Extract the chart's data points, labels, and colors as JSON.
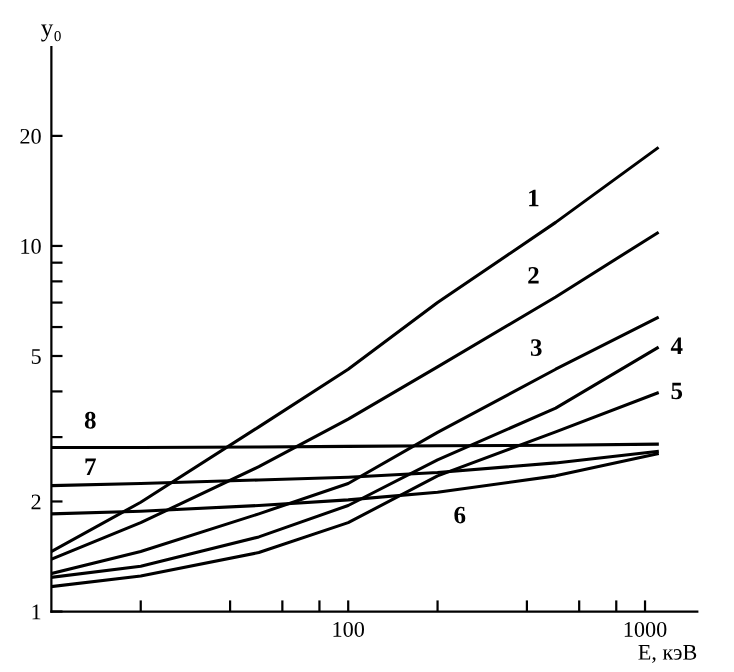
{
  "chart_data": {
    "type": "line",
    "xlabel": "E, кэВ",
    "ylabel": "y₀",
    "log": "xy",
    "x": [
      10,
      20,
      50,
      100,
      200,
      500,
      1100
    ],
    "series": [
      {
        "name": "1",
        "color": "#000000",
        "values": [
          1.46,
          1.99,
          3.2,
          4.6,
          7.0,
          11.6,
          18.5
        ]
      },
      {
        "name": "2",
        "color": "#000000",
        "values": [
          1.39,
          1.75,
          2.49,
          3.36,
          4.67,
          7.25,
          10.85
        ]
      },
      {
        "name": "3",
        "color": "#000000",
        "values": [
          1.27,
          1.46,
          1.85,
          2.24,
          3.09,
          4.6,
          6.36
        ]
      },
      {
        "name": "4",
        "color": "#000000",
        "values": [
          1.24,
          1.33,
          1.6,
          1.95,
          2.6,
          3.6,
          5.26
        ]
      },
      {
        "name": "5",
        "color": "#000000",
        "values": [
          1.17,
          1.25,
          1.45,
          1.75,
          2.35,
          3.1,
          3.96
        ]
      },
      {
        "name": "6",
        "color": "#000000",
        "values": [
          1.85,
          1.88,
          1.95,
          2.02,
          2.12,
          2.35,
          2.7
        ]
      },
      {
        "name": "7",
        "color": "#000000",
        "values": [
          2.21,
          2.24,
          2.29,
          2.33,
          2.4,
          2.55,
          2.74
        ]
      },
      {
        "name": "8",
        "color": "#000000",
        "values": [
          2.81,
          2.81,
          2.82,
          2.83,
          2.84,
          2.85,
          2.87
        ]
      }
    ],
    "xlim": [
      10,
      1500
    ],
    "ylim": [
      1,
      35
    ],
    "xticks": [
      {
        "value": 20,
        "label": null
      },
      {
        "value": 40,
        "label": null
      },
      {
        "value": 60,
        "label": null
      },
      {
        "value": 80,
        "label": null
      },
      100,
      {
        "value": 200,
        "label": null
      },
      {
        "value": 400,
        "label": null
      },
      {
        "value": 600,
        "label": null
      },
      {
        "value": 800,
        "label": null
      },
      1000
    ],
    "yticks": [
      1,
      2,
      {
        "value": 3,
        "label": null
      },
      {
        "value": 4,
        "label": null
      },
      5,
      {
        "value": 6,
        "label": null
      },
      {
        "value": 7,
        "label": null
      },
      {
        "value": 8,
        "label": null
      },
      {
        "value": 9,
        "label": null
      },
      10,
      20
    ],
    "grid": false,
    "marker": "none",
    "line_style": "solid"
  }
}
